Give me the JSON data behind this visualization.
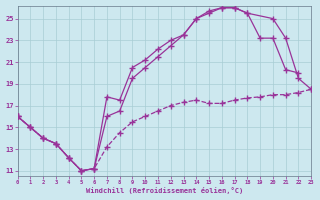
{
  "background_color": "#cde8ef",
  "grid_color": "#a8cdd4",
  "line_color": "#993399",
  "xlim": [
    0,
    23
  ],
  "ylim": [
    10.5,
    26.2
  ],
  "yticks": [
    11,
    13,
    15,
    17,
    19,
    21,
    23,
    25
  ],
  "xticks": [
    0,
    1,
    2,
    3,
    4,
    5,
    6,
    7,
    8,
    9,
    10,
    11,
    12,
    13,
    14,
    15,
    16,
    17,
    18,
    19,
    20,
    21,
    22,
    23
  ],
  "xlabel": "Windchill (Refroidissement éolien,°C)",
  "curve1_x": [
    0,
    1,
    2,
    3,
    4,
    5,
    6,
    7,
    8,
    9,
    10,
    11,
    12,
    13,
    14,
    15,
    16,
    17,
    18,
    19,
    20,
    21,
    22
  ],
  "curve1_y": [
    16.0,
    15.0,
    14.0,
    13.5,
    12.2,
    11.0,
    11.2,
    17.8,
    17.5,
    20.5,
    21.2,
    22.2,
    23.0,
    23.5,
    25.0,
    25.7,
    26.0,
    26.0,
    25.5,
    23.2,
    23.2,
    20.3,
    20.0
  ],
  "curve2_x": [
    0,
    1,
    2,
    3,
    4,
    5,
    6,
    7,
    8,
    9,
    10,
    11,
    12,
    13,
    14,
    15,
    16,
    17,
    18,
    20,
    21,
    22,
    23
  ],
  "curve2_y": [
    16.0,
    15.0,
    14.0,
    13.5,
    12.2,
    11.0,
    11.2,
    16.0,
    16.5,
    19.5,
    20.5,
    21.5,
    22.5,
    23.5,
    25.0,
    25.5,
    26.0,
    26.0,
    25.5,
    25.0,
    23.2,
    19.5,
    18.5
  ],
  "curve3_x": [
    0,
    1,
    2,
    3,
    4,
    5,
    6,
    7,
    8,
    9,
    10,
    11,
    12,
    13,
    14,
    15,
    16,
    17,
    18,
    19,
    20,
    21,
    22,
    23
  ],
  "curve3_y": [
    16.0,
    15.0,
    14.0,
    13.5,
    12.2,
    11.0,
    11.2,
    13.2,
    14.5,
    15.5,
    16.0,
    16.5,
    17.0,
    17.3,
    17.5,
    17.2,
    17.2,
    17.5,
    17.7,
    17.8,
    18.0,
    18.0,
    18.2,
    18.5
  ]
}
